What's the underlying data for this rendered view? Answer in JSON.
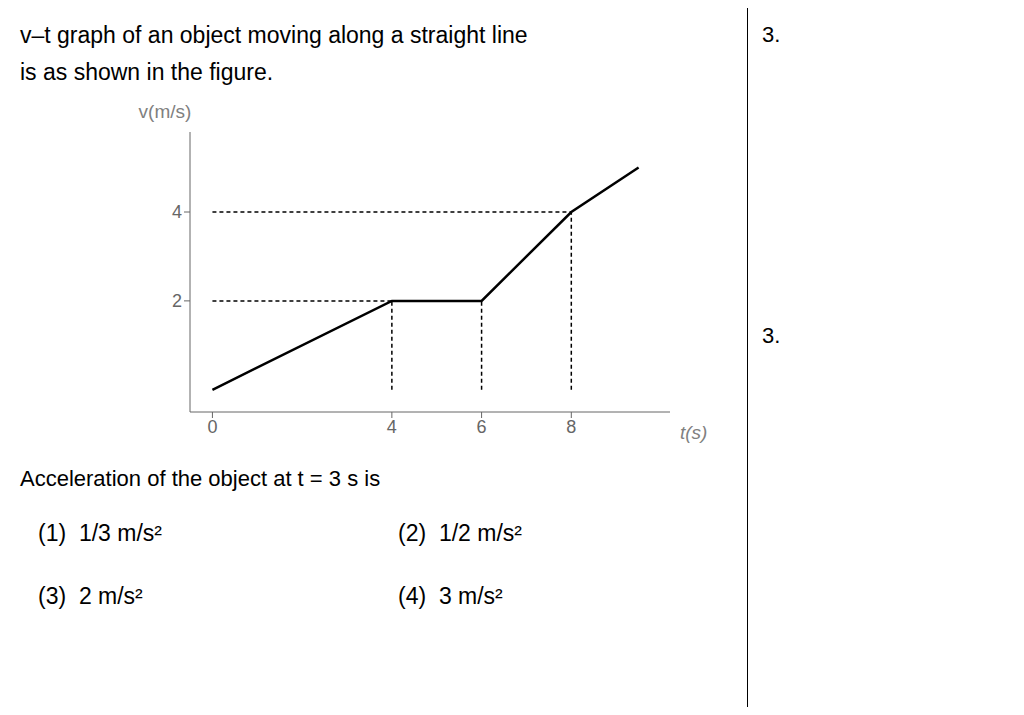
{
  "chart_data": {
    "type": "line",
    "title": "v–t graph of an object moving along a straight line",
    "subtitle": "is as shown in the figure.",
    "x": [
      0,
      4,
      6,
      8,
      9.5
    ],
    "values": [
      0,
      2,
      2,
      4,
      5
    ],
    "color": "#000000",
    "xlabel": "t(s)",
    "ylabel": "v(m/s)",
    "xlim": [
      -0.5,
      10.2
    ],
    "ylim": [
      -0.5,
      5.8
    ],
    "xticks": [
      0,
      4,
      6,
      8
    ],
    "yticks": [
      2,
      4
    ],
    "grid": false,
    "reference_lines": {
      "color": "#000000",
      "line_style": "dashed",
      "lines": [
        {
          "x": [
            0,
            4
          ],
          "y": [
            2,
            2
          ]
        },
        {
          "x": [
            4,
            4
          ],
          "y": [
            0,
            2
          ]
        },
        {
          "x": [
            6,
            6
          ],
          "y": [
            0,
            2
          ]
        },
        {
          "x": [
            0,
            8
          ],
          "y": [
            4,
            4
          ]
        },
        {
          "x": [
            8,
            8
          ],
          "y": [
            0,
            4
          ]
        }
      ]
    },
    "question_text": "Acceleration of the object at t = 3 s is",
    "options": [
      "(1)  1/3 m/s²",
      "(2)  1/2 m/s²",
      "(3)  2 m/s²",
      "(4)  3 m/s²"
    ],
    "question_numbers": [
      "3.",
      "3."
    ]
  }
}
